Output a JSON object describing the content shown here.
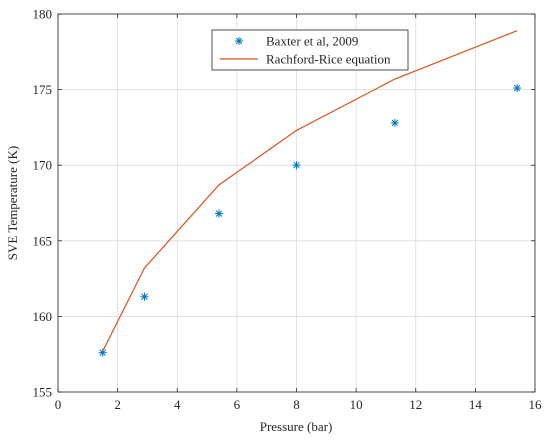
{
  "chart_data": {
    "type": "line",
    "title": "",
    "xlabel": "Pressure (bar)",
    "ylabel": "SVE Temperature (K)",
    "xlim": [
      0,
      16
    ],
    "ylim": [
      155,
      180
    ],
    "xticks": [
      0,
      2,
      4,
      6,
      8,
      10,
      12,
      14,
      16
    ],
    "yticks": [
      155,
      160,
      165,
      170,
      175,
      180
    ],
    "grid": true,
    "legend_position": "top-center",
    "series": [
      {
        "name": "Baxter et al, 2009",
        "kind": "scatter",
        "marker": "asterisk",
        "color": "#0072BD",
        "x": [
          1.5,
          2.9,
          5.4,
          8.0,
          11.3,
          15.4
        ],
        "y": [
          157.6,
          161.3,
          166.8,
          170.0,
          172.8,
          175.1
        ]
      },
      {
        "name": "Rachford-Rice equation",
        "kind": "line",
        "color": "#D95319",
        "x": [
          1.5,
          2.9,
          5.4,
          8.0,
          11.3,
          15.4
        ],
        "y": [
          157.7,
          163.2,
          168.7,
          172.3,
          175.7,
          178.9
        ]
      }
    ]
  }
}
